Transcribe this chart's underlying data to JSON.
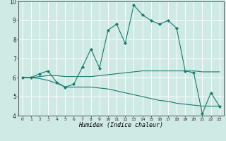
{
  "xlabel": "Humidex (Indice chaleur)",
  "xlim": [
    -0.5,
    23.5
  ],
  "ylim": [
    4,
    10
  ],
  "xticks": [
    0,
    1,
    2,
    3,
    4,
    5,
    6,
    7,
    8,
    9,
    10,
    11,
    12,
    13,
    14,
    15,
    16,
    17,
    18,
    19,
    20,
    21,
    22,
    23
  ],
  "yticks": [
    4,
    5,
    6,
    7,
    8,
    9,
    10
  ],
  "bg_color": "#cfe9e5",
  "line_color": "#1a7a6e",
  "grid_color": "#ffffff",
  "series": [
    {
      "has_markers": true,
      "x": [
        0,
        1,
        2,
        3,
        4,
        5,
        6,
        7,
        8,
        9,
        10,
        11,
        12,
        13,
        14,
        15,
        16,
        17,
        18,
        19,
        20,
        21,
        22,
        23
      ],
      "y": [
        6.0,
        6.0,
        6.2,
        6.35,
        5.75,
        5.5,
        5.65,
        6.55,
        7.5,
        6.5,
        8.5,
        8.8,
        7.8,
        9.8,
        9.3,
        9.0,
        8.8,
        9.0,
        8.6,
        6.35,
        6.25,
        4.1,
        5.2,
        4.5
      ]
    },
    {
      "has_markers": false,
      "x": [
        0,
        1,
        2,
        3,
        4,
        5,
        6,
        7,
        8,
        9,
        10,
        11,
        12,
        13,
        14,
        15,
        16,
        17,
        18,
        19,
        20,
        21,
        22,
        23
      ],
      "y": [
        6.0,
        6.0,
        6.05,
        6.1,
        6.1,
        6.05,
        6.05,
        6.05,
        6.05,
        6.1,
        6.15,
        6.2,
        6.25,
        6.3,
        6.35,
        6.35,
        6.35,
        6.35,
        6.35,
        6.35,
        6.35,
        6.3,
        6.3,
        6.3
      ]
    },
    {
      "has_markers": false,
      "x": [
        0,
        1,
        2,
        3,
        4,
        5,
        6,
        7,
        8,
        9,
        10,
        11,
        12,
        13,
        14,
        15,
        16,
        17,
        18,
        19,
        20,
        21,
        22,
        23
      ],
      "y": [
        6.0,
        6.0,
        5.95,
        5.85,
        5.7,
        5.5,
        5.5,
        5.5,
        5.5,
        5.45,
        5.4,
        5.3,
        5.2,
        5.1,
        5.0,
        4.9,
        4.8,
        4.75,
        4.65,
        4.6,
        4.55,
        4.5,
        4.5,
        4.5
      ]
    }
  ]
}
